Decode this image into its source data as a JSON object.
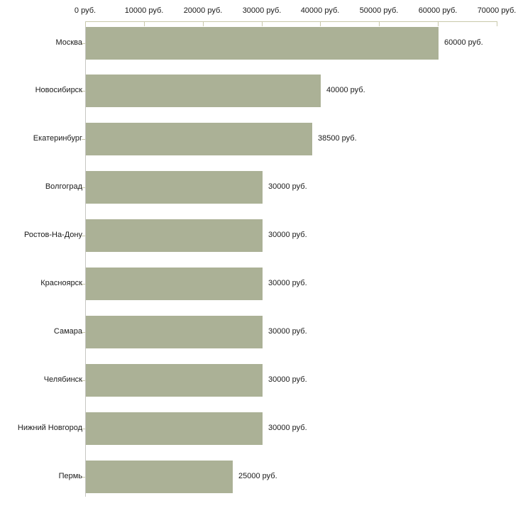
{
  "chart_data": {
    "type": "bar",
    "orientation": "horizontal",
    "title": "",
    "xlabel": "",
    "ylabel": "",
    "unit": "руб.",
    "categories": [
      "Москва",
      "Новосибирск",
      "Екатеринбург",
      "Волгоград",
      "Ростов-На-Дону",
      "Красноярск",
      "Самара",
      "Челябинск",
      "Нижний Новгород",
      "Пермь"
    ],
    "values": [
      60000,
      40000,
      38500,
      30000,
      30000,
      30000,
      30000,
      30000,
      30000,
      25000
    ],
    "value_labels": [
      "60000 руб.",
      "40000 руб.",
      "38500 руб.",
      "30000 руб.",
      "30000 руб.",
      "30000 руб.",
      "30000 руб.",
      "30000 руб.",
      "30000 руб.",
      "25000 руб."
    ],
    "x_tick_values": [
      0,
      10000,
      20000,
      30000,
      40000,
      50000,
      60000,
      70000
    ],
    "x_tick_labels": [
      "0 руб.",
      "10000 руб.",
      "20000 руб.",
      "30000 руб.",
      "40000 руб.",
      "50000 руб.",
      "60000 руб.",
      "70000 руб."
    ],
    "xlim": [
      0,
      70000
    ],
    "grid": false,
    "legend": false,
    "colors": {
      "bar": "#abb196",
      "axis_line": "#c8c8aa",
      "y_axis_line": "#c6c6c2",
      "text": "#1a1a1a",
      "background": "#ffffff"
    }
  }
}
